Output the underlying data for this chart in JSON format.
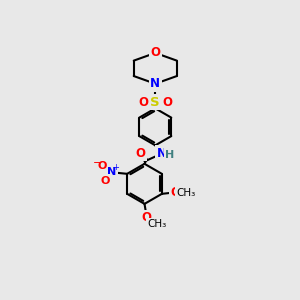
{
  "background_color": "#e8e8e8",
  "bond_color": "#000000",
  "atom_colors": {
    "O": "#ff0000",
    "N": "#0000ff",
    "S": "#cccc00",
    "C": "#000000",
    "H": "#408080"
  }
}
